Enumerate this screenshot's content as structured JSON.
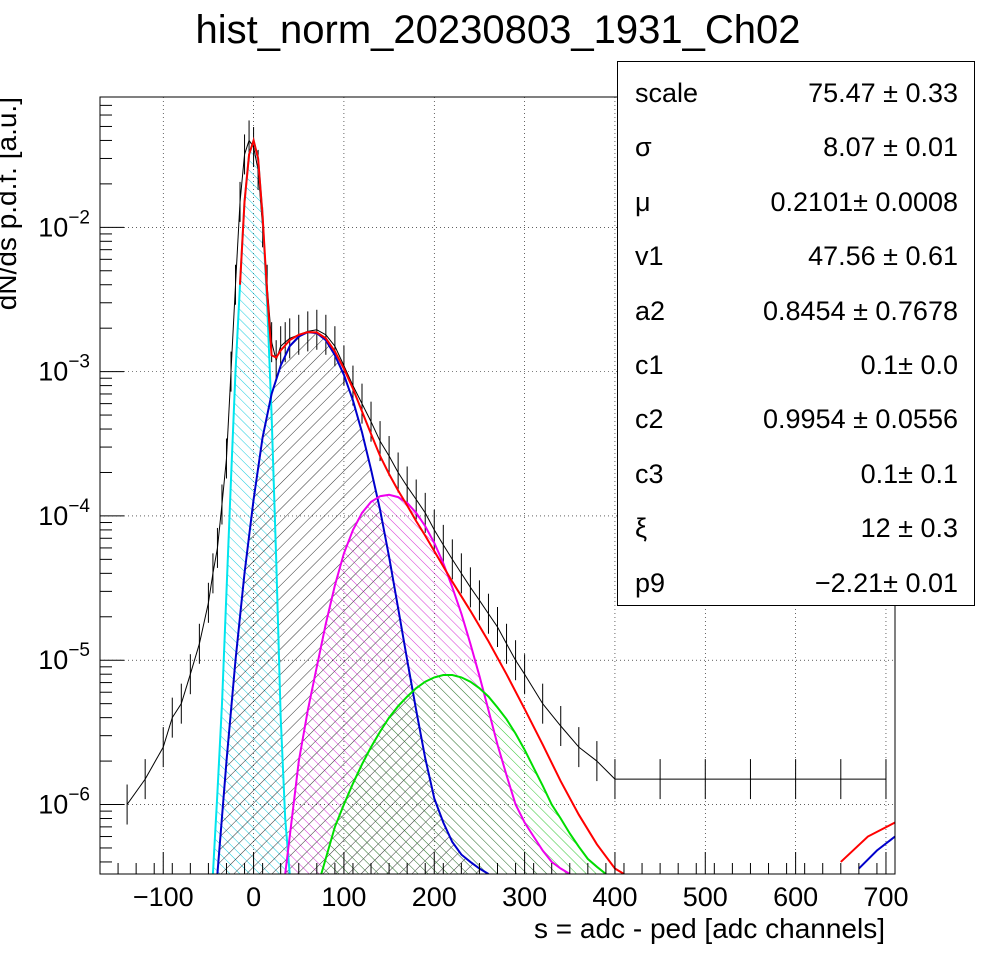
{
  "title": "hist_norm_20230803_1931_Ch02",
  "stats": [
    {
      "name": "scale",
      "value": "75.47 ± 0.33"
    },
    {
      "name": "σ",
      "value": "8.07 ± 0.01"
    },
    {
      "name": "μ",
      "value": "0.2101± 0.0008"
    },
    {
      "name": "v1",
      "value": "47.56 ± 0.61"
    },
    {
      "name": "a2",
      "value": "0.8454 ± 0.7678"
    },
    {
      "name": "c1",
      "value": "0.1± 0.0"
    },
    {
      "name": "c2",
      "value": "0.9954 ± 0.0556"
    },
    {
      "name": "c3",
      "value": "0.1± 0.1"
    },
    {
      "name": "ξ",
      "value": "12 ± 0.3"
    },
    {
      "name": "p9",
      "value": "−2.21± 0.01"
    }
  ],
  "chart_data": {
    "type": "line",
    "title": "hist_norm_20230803_1931_Ch02",
    "xlabel": "s = adc - ped [adc channels]",
    "ylabel": "dN/ds p.d.f. [a.u.]",
    "xlim": [
      -170,
      710
    ],
    "ylim": [
      3.3e-07,
      0.08
    ],
    "yscale": "log",
    "grid": true,
    "x_ticks": [
      {
        "v": -100,
        "label": "−100"
      },
      {
        "v": 0,
        "label": "0"
      },
      {
        "v": 100,
        "label": "100"
      },
      {
        "v": 200,
        "label": "200"
      },
      {
        "v": 300,
        "label": "300"
      },
      {
        "v": 400,
        "label": "400"
      },
      {
        "v": 500,
        "label": "500"
      },
      {
        "v": 600,
        "label": "600"
      },
      {
        "v": 700,
        "label": "700"
      }
    ],
    "y_ticks": [
      {
        "v": 1e-06,
        "base": "10",
        "exp": "−6"
      },
      {
        "v": 1e-05,
        "base": "10",
        "exp": "−5"
      },
      {
        "v": 0.0001,
        "base": "10",
        "exp": "−4"
      },
      {
        "v": 0.001,
        "base": "10",
        "exp": "−3"
      },
      {
        "v": 0.01,
        "base": "10",
        "exp": "−2"
      }
    ],
    "series": [
      {
        "color": "#000000",
        "role": "histogram",
        "x": [
          -140,
          -120,
          -100,
          -90,
          -80,
          -70,
          -60,
          -50,
          -45,
          -40,
          -35,
          -30,
          -25,
          -20,
          -15,
          -10,
          -5,
          0,
          5,
          10,
          15,
          20,
          25,
          30,
          35,
          40,
          50,
          60,
          70,
          80,
          90,
          100,
          110,
          120,
          130,
          140,
          150,
          160,
          170,
          180,
          190,
          200,
          210,
          220,
          230,
          240,
          250,
          260,
          270,
          280,
          290,
          300,
          320,
          340,
          360,
          380,
          400,
          450,
          500,
          550,
          600,
          650,
          700
        ],
        "y": [
          1e-06,
          1.5e-06,
          2.5e-06,
          4e-06,
          5e-06,
          8e-06,
          1.3e-05,
          2.5e-05,
          4e-05,
          6e-05,
          0.00012,
          0.00025,
          0.001,
          0.004,
          0.015,
          0.032,
          0.04,
          0.036,
          0.025,
          0.01,
          0.004,
          0.0016,
          0.0012,
          0.0015,
          0.0016,
          0.0017,
          0.0018,
          0.0019,
          0.00195,
          0.0018,
          0.0015,
          0.0011,
          0.0008,
          0.0006,
          0.00045,
          0.00033,
          0.00026,
          0.0002,
          0.00016,
          0.00013,
          0.000105,
          8e-05,
          6.3e-05,
          5e-05,
          4e-05,
          3.2e-05,
          2.6e-05,
          2.1e-05,
          1.7e-05,
          1.3e-05,
          1e-05,
          8e-06,
          5e-06,
          3.5e-06,
          2.5e-06,
          2e-06,
          1.5e-06,
          1.5e-06,
          1.5e-06,
          1.5e-06,
          1.5e-06,
          1.5e-06,
          1.5e-06
        ]
      },
      {
        "color": "#00e5ee",
        "role": "pedestal component",
        "fill": true,
        "x": [
          -45,
          -40,
          -35,
          -30,
          -25,
          -20,
          -15,
          -10,
          -5,
          0,
          5,
          10,
          15,
          20,
          25,
          30,
          35,
          40
        ],
        "y": [
          3.3e-07,
          1.2e-06,
          5e-06,
          3e-05,
          0.00018,
          0.001,
          0.004,
          0.015,
          0.032,
          0.04,
          0.03,
          0.012,
          0.003,
          0.0005,
          5e-05,
          4e-06,
          8e-07,
          3.3e-07
        ]
      },
      {
        "color": "#0000cc",
        "role": "1 p.e. component",
        "fill": true,
        "x": [
          -40,
          -30,
          -20,
          -10,
          0,
          10,
          20,
          30,
          40,
          50,
          60,
          70,
          80,
          90,
          100,
          110,
          120,
          130,
          140,
          150,
          160,
          170,
          180,
          190,
          200,
          210,
          220,
          230,
          240,
          250,
          260
        ],
        "y": [
          3.3e-07,
          2e-06,
          1e-05,
          4e-05,
          0.00013,
          0.00035,
          0.0007,
          0.0011,
          0.0015,
          0.00175,
          0.00188,
          0.00185,
          0.00165,
          0.0013,
          0.00095,
          0.00063,
          0.00038,
          0.00021,
          0.00011,
          5.2e-05,
          2.3e-05,
          1e-05,
          4.5e-06,
          2.1e-06,
          1.1e-06,
          7.5e-07,
          5.5e-07,
          4.5e-07,
          4e-07,
          3.6e-07,
          3.3e-07
        ]
      },
      {
        "color": "#ee00ee",
        "role": "2 p.e. component",
        "fill": true,
        "x": [
          35,
          50,
          60,
          70,
          80,
          90,
          100,
          110,
          120,
          130,
          140,
          150,
          160,
          170,
          180,
          190,
          200,
          210,
          220,
          230,
          240,
          250,
          260,
          270,
          280,
          290,
          300,
          310,
          320,
          330,
          340,
          350
        ],
        "y": [
          3.3e-07,
          2e-06,
          4.5e-06,
          9e-06,
          1.8e-05,
          3.3e-05,
          5.5e-05,
          8e-05,
          0.000105,
          0.000125,
          0.000137,
          0.00014,
          0.000135,
          0.000123,
          0.000105,
          8.5e-05,
          6.5e-05,
          4.7e-05,
          3.2e-05,
          2.1e-05,
          1.3e-05,
          7.8e-06,
          4.5e-06,
          2.6e-06,
          1.6e-06,
          1e-06,
          7.5e-07,
          6e-07,
          4.8e-07,
          4e-07,
          3.6e-07,
          3.3e-07
        ]
      },
      {
        "color": "#00dd00",
        "role": "3 p.e. component",
        "fill": true,
        "x": [
          75,
          90,
          100,
          110,
          120,
          130,
          140,
          150,
          160,
          170,
          180,
          190,
          200,
          210,
          220,
          230,
          240,
          250,
          260,
          270,
          280,
          290,
          300,
          310,
          320,
          330,
          340,
          350,
          360,
          370,
          380,
          390
        ],
        "y": [
          3.3e-07,
          7e-07,
          1e-06,
          1.4e-06,
          1.9e-06,
          2.5e-06,
          3.2e-06,
          4e-06,
          4.8e-06,
          5.6e-06,
          6.4e-06,
          7.1e-06,
          7.6e-06,
          7.9e-06,
          7.9e-06,
          7.6e-06,
          7.1e-06,
          6.4e-06,
          5.6e-06,
          4.7e-06,
          3.9e-06,
          3.1e-06,
          2.4e-06,
          1.8e-06,
          1.35e-06,
          1e-06,
          8e-07,
          6.3e-07,
          5.1e-07,
          4.2e-07,
          3.7e-07,
          3.3e-07
        ]
      },
      {
        "color": "#ff0000",
        "role": "total fit",
        "fill": false,
        "x": [
          -15,
          -10,
          -5,
          0,
          5,
          10,
          15,
          20,
          25,
          30,
          40,
          50,
          60,
          70,
          80,
          90,
          100,
          110,
          120,
          130,
          140,
          150,
          160,
          170,
          180,
          190,
          200,
          220,
          240,
          260,
          280,
          300,
          320,
          340,
          360,
          380,
          400,
          410
        ],
        "y": [
          0.004,
          0.015,
          0.032,
          0.04,
          0.03,
          0.012,
          0.0035,
          0.0013,
          0.00125,
          0.0014,
          0.00165,
          0.0018,
          0.00188,
          0.00187,
          0.0017,
          0.00138,
          0.00105,
          0.00076,
          0.00053,
          0.00037,
          0.00026,
          0.000195,
          0.00015,
          0.000118,
          9.2e-05,
          7.3e-05,
          5.7e-05,
          3.5e-05,
          2.2e-05,
          1.35e-05,
          8e-06,
          4.6e-06,
          2.6e-06,
          1.45e-06,
          8.5e-07,
          5.3e-07,
          3.6e-07,
          3.3e-07
        ]
      }
    ]
  }
}
